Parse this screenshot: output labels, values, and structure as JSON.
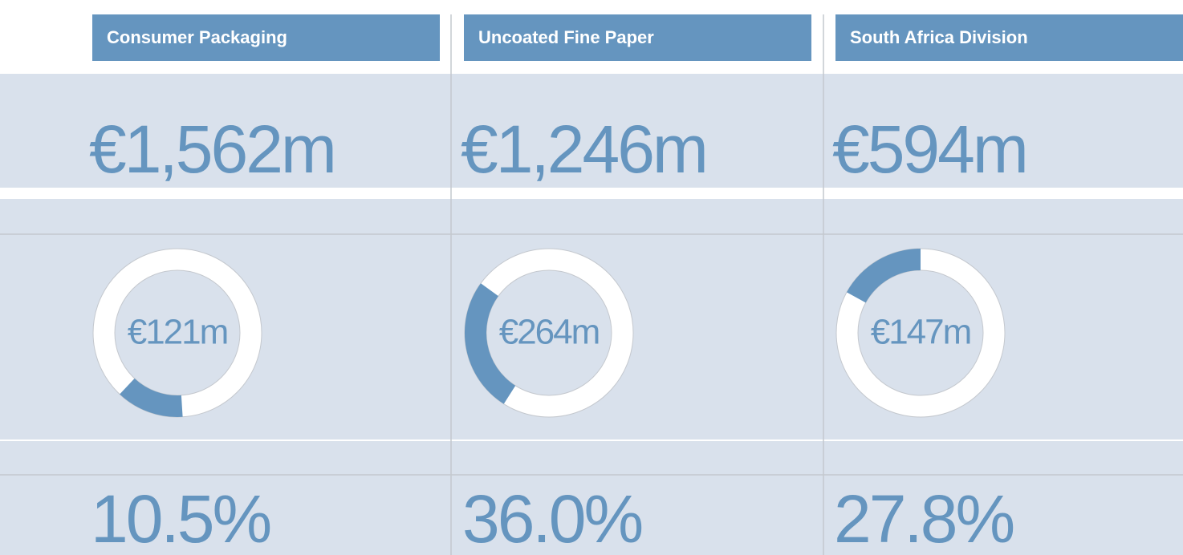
{
  "columns": [
    {
      "header": "Consumer Packaging",
      "revenue": "€1,562m",
      "donut": {
        "label": "€121m",
        "arc": [
          49,
          62
        ]
      },
      "percent": "10.5%"
    },
    {
      "header": "Uncoated Fine Paper",
      "revenue": "€1,246m",
      "donut": {
        "label": "€264m",
        "arc": [
          59,
          85
        ]
      },
      "percent": "36.0%"
    },
    {
      "header": "South Africa Division",
      "revenue": "€594m",
      "donut": {
        "label": "€147m",
        "arc": [
          83,
          100
        ]
      },
      "percent": "27.8%"
    }
  ]
}
